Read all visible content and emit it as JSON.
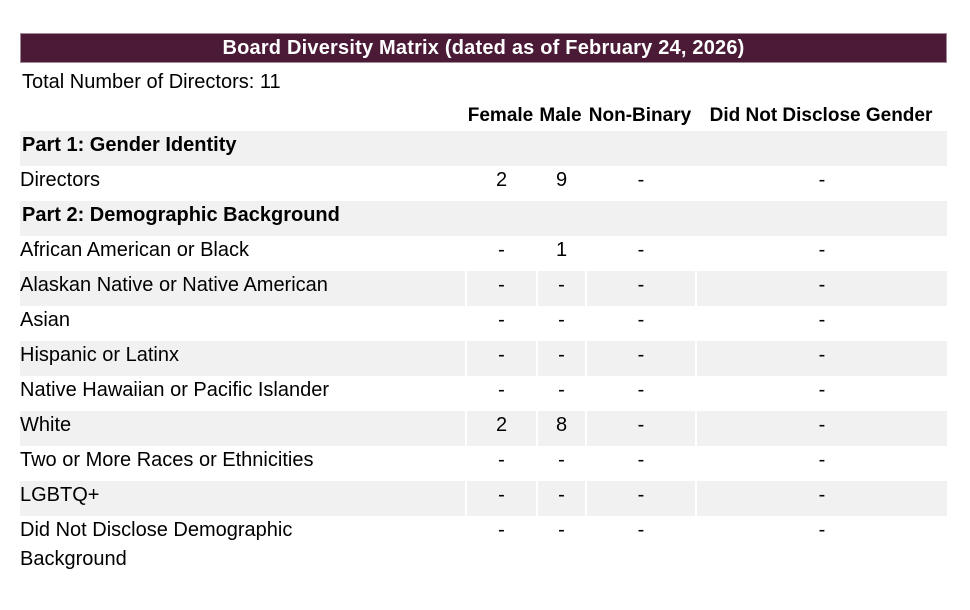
{
  "title": "Board Diversity Matrix (dated as of February 24, 2026)",
  "summary": "Total Number of Directors: 11",
  "colors": {
    "title_bar_background": "#4A1A36",
    "title_bar_text": "#FFFFFF",
    "shaded_row_background": "#F1F1F1",
    "body_text": "#000000"
  },
  "table": {
    "columns": [
      "",
      "Female",
      "Male",
      "Non-Binary",
      "Did Not Disclose Gender"
    ],
    "rows": [
      {
        "type": "section",
        "label": "Part 1: Gender Identity"
      },
      {
        "type": "data",
        "label": "Directors",
        "values": [
          "2",
          "9",
          "-",
          "-"
        ]
      },
      {
        "type": "section",
        "label": "Part 2: Demographic Background"
      },
      {
        "type": "data",
        "label": "African American or Black",
        "values": [
          "-",
          "1",
          "-",
          "-"
        ]
      },
      {
        "type": "data",
        "label": "Alaskan Native or Native American",
        "values": [
          "-",
          "-",
          "-",
          "-"
        ]
      },
      {
        "type": "data",
        "label": "Asian",
        "values": [
          "-",
          "-",
          "-",
          "-"
        ]
      },
      {
        "type": "data",
        "label": "Hispanic or Latinx",
        "values": [
          "-",
          "-",
          "-",
          "-"
        ]
      },
      {
        "type": "data",
        "label": "Native Hawaiian or Pacific Islander",
        "values": [
          "-",
          "-",
          "-",
          "-"
        ]
      },
      {
        "type": "data",
        "label": "White",
        "values": [
          "2",
          "8",
          "-",
          "-"
        ]
      },
      {
        "type": "data",
        "label": "Two or More Races or Ethnicities",
        "values": [
          "-",
          "-",
          "-",
          "-"
        ]
      },
      {
        "type": "data",
        "label": "LGBTQ+",
        "values": [
          "-",
          "-",
          "-",
          "-"
        ]
      },
      {
        "type": "data",
        "label": "Did Not Disclose Demographic Background",
        "values": [
          "-",
          "-",
          "-",
          "-"
        ]
      }
    ]
  }
}
